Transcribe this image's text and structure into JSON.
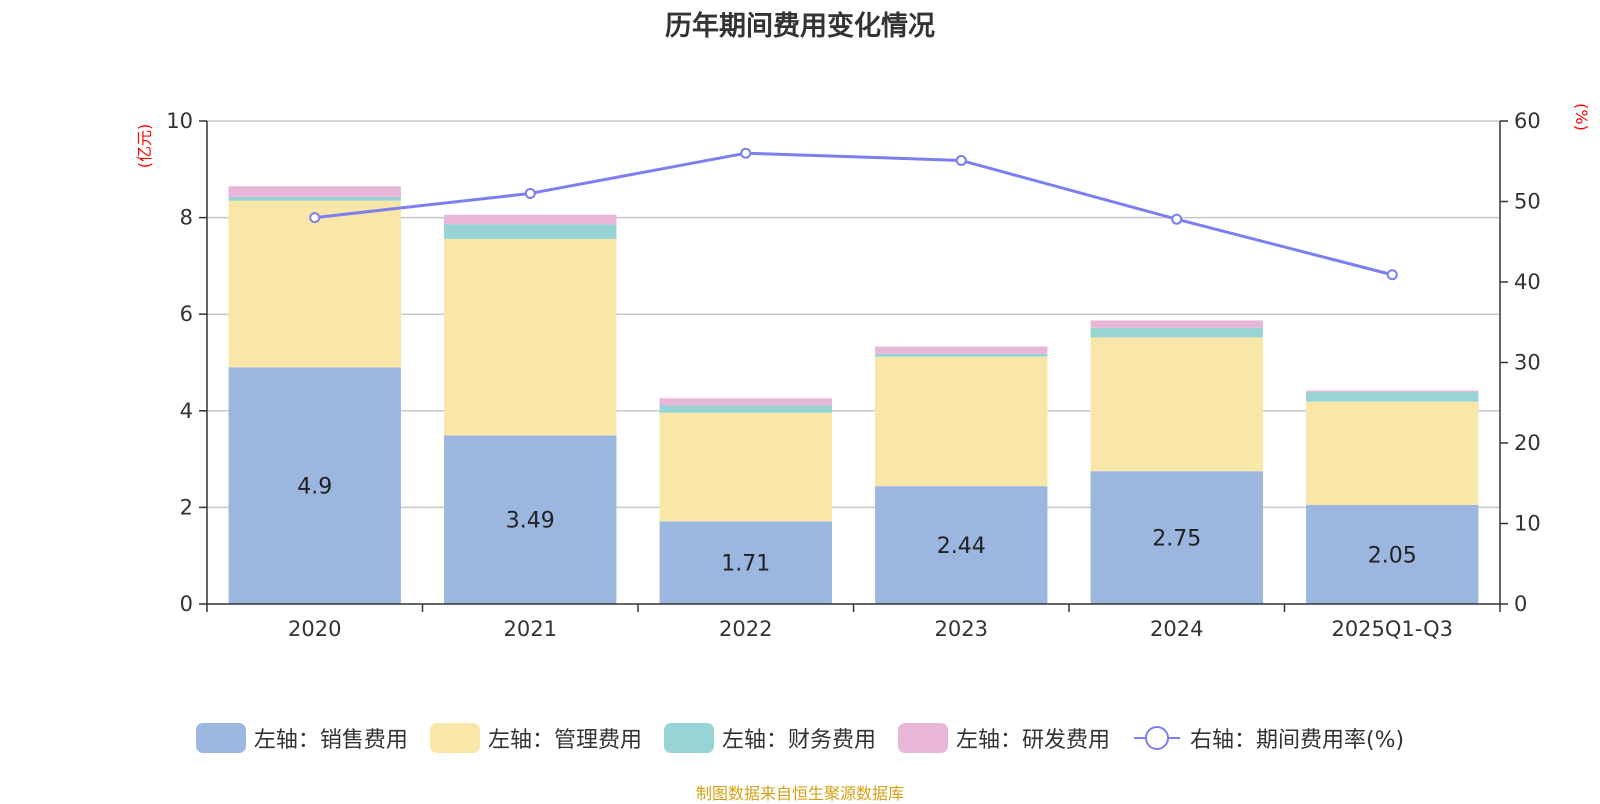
{
  "chart_data": {
    "type": "bar",
    "title": "历年期间费用变化情况",
    "categories": [
      "2020",
      "2021",
      "2022",
      "2023",
      "2024",
      "2025Q1-Q3"
    ],
    "left_axis": {
      "unit": "(亿元)",
      "ylim": [
        0,
        10
      ],
      "ticks": [
        0,
        2,
        4,
        6,
        8,
        10
      ]
    },
    "right_axis": {
      "unit": "(%)",
      "ylim": [
        0,
        60
      ],
      "ticks": [
        0,
        10,
        20,
        30,
        40,
        50,
        60
      ]
    },
    "series": [
      {
        "name": "左轴：销售费用",
        "kind": "bar",
        "axis": "left",
        "color": "#9bb7e0",
        "values": [
          4.9,
          3.49,
          1.71,
          2.44,
          2.75,
          2.05
        ],
        "show_labels": true
      },
      {
        "name": "左轴：管理费用",
        "kind": "bar",
        "axis": "left",
        "color": "#f8e7a8",
        "values": [
          3.45,
          4.07,
          2.25,
          2.68,
          2.77,
          2.14
        ]
      },
      {
        "name": "左轴：财务费用",
        "kind": "bar",
        "axis": "left",
        "color": "#98d4d4",
        "values": [
          0.08,
          0.3,
          0.15,
          0.06,
          0.2,
          0.2
        ]
      },
      {
        "name": "左轴：研发费用",
        "kind": "bar",
        "axis": "left",
        "color": "#e8b7d8",
        "values": [
          0.22,
          0.2,
          0.15,
          0.15,
          0.15,
          0.03
        ]
      },
      {
        "name": "右轴：期间费用率(%)",
        "kind": "line",
        "axis": "right",
        "color": "#7b7ff0",
        "values": [
          48,
          51,
          56,
          55.1,
          47.8,
          40.9
        ]
      }
    ],
    "legend_position": "bottom",
    "grid": true,
    "source": "制图数据来自恒生聚源数据库"
  }
}
